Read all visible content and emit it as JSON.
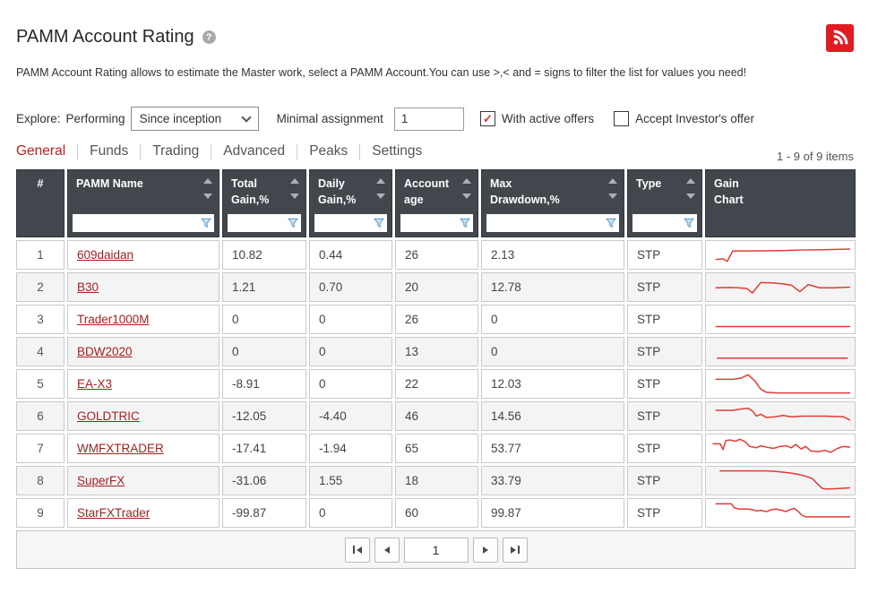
{
  "page": {
    "title": "PAMM Account Rating",
    "description": "PAMM Account Rating allows to estimate the Master work, select a PAMM Account.You can use >,< and = signs to filter the list for values you need!"
  },
  "controls": {
    "explore_label": "Explore:",
    "performing_label": "Performing",
    "period_select": {
      "value": "Since inception"
    },
    "minimal_assignment_label": "Minimal assignment",
    "minimal_assignment_value": "1",
    "checkboxes": [
      {
        "label": "With active offers",
        "checked": true
      },
      {
        "label": "Accept Investor's offer",
        "checked": false
      }
    ]
  },
  "tabs": [
    {
      "label": "General",
      "active": true
    },
    {
      "label": "Funds",
      "active": false
    },
    {
      "label": "Trading",
      "active": false
    },
    {
      "label": "Advanced",
      "active": false
    },
    {
      "label": "Peaks",
      "active": false
    },
    {
      "label": "Settings",
      "active": false
    }
  ],
  "items_count": "1 - 9 of 9 items",
  "table": {
    "columns": [
      {
        "label_lines": [
          "#"
        ],
        "sortable": false,
        "filterable": false,
        "center": true
      },
      {
        "label_lines": [
          "PAMM Name"
        ],
        "sortable": true,
        "filterable": true
      },
      {
        "label_lines": [
          "Total",
          "Gain,%"
        ],
        "sortable": true,
        "filterable": true
      },
      {
        "label_lines": [
          "Daily",
          "Gain,%"
        ],
        "sortable": true,
        "filterable": true
      },
      {
        "label_lines": [
          "Account",
          "age"
        ],
        "sortable": true,
        "filterable": true
      },
      {
        "label_lines": [
          "Max",
          "Drawdown,%"
        ],
        "sortable": true,
        "filterable": true
      },
      {
        "label_lines": [
          "Type"
        ],
        "sortable": true,
        "filterable": true
      },
      {
        "label_lines": [
          "Gain",
          "Chart"
        ],
        "sortable": false,
        "filterable": false
      }
    ],
    "rows": [
      {
        "num": "1",
        "name": "609daidan",
        "total_gain": "10.82",
        "daily_gain": "0.44",
        "age": "26",
        "max_drawdown": "2.13",
        "type": "STP",
        "spark": [
          [
            4,
            27
          ],
          [
            9,
            26
          ],
          [
            12,
            30
          ],
          [
            16,
            14
          ],
          [
            30,
            14
          ],
          [
            50,
            13.5
          ],
          [
            65,
            12.5
          ],
          [
            80,
            12
          ],
          [
            100,
            11
          ]
        ]
      },
      {
        "num": "2",
        "name": "B30",
        "total_gain": "1.21",
        "daily_gain": "0.70",
        "age": "20",
        "max_drawdown": "12.78",
        "type": "STP",
        "spark": [
          [
            4,
            21
          ],
          [
            14,
            20.5
          ],
          [
            20,
            21
          ],
          [
            26,
            22
          ],
          [
            30,
            29
          ],
          [
            36,
            13
          ],
          [
            44,
            13.5
          ],
          [
            52,
            15
          ],
          [
            58,
            17
          ],
          [
            64,
            27
          ],
          [
            70,
            16
          ],
          [
            78,
            21
          ],
          [
            88,
            21
          ],
          [
            100,
            20
          ]
        ]
      },
      {
        "num": "3",
        "name": "Trader1000M",
        "total_gain": "0",
        "daily_gain": "0",
        "age": "26",
        "max_drawdown": "0",
        "type": "STP",
        "spark": [
          [
            4,
            31
          ],
          [
            100,
            31
          ]
        ]
      },
      {
        "num": "4",
        "name": "BDW2020",
        "total_gain": "0",
        "daily_gain": "0",
        "age": "13",
        "max_drawdown": "0",
        "type": "STP",
        "spark": [
          [
            5,
            30
          ],
          [
            98,
            30
          ]
        ]
      },
      {
        "num": "5",
        "name": "EA-X3",
        "total_gain": "-8.91",
        "daily_gain": "0",
        "age": "22",
        "max_drawdown": "12.03",
        "type": "STP",
        "spark": [
          [
            4,
            13
          ],
          [
            16,
            13
          ],
          [
            22,
            11
          ],
          [
            27,
            6
          ],
          [
            32,
            16
          ],
          [
            36,
            28
          ],
          [
            40,
            33
          ],
          [
            48,
            34
          ],
          [
            100,
            34
          ]
        ]
      },
      {
        "num": "6",
        "name": "GOLDTRIC",
        "total_gain": "-12.05",
        "daily_gain": "-4.40",
        "age": "46",
        "max_drawdown": "14.56",
        "type": "STP",
        "spark": [
          [
            4,
            11
          ],
          [
            16,
            11
          ],
          [
            22,
            9
          ],
          [
            27,
            8
          ],
          [
            30,
            12
          ],
          [
            33,
            20
          ],
          [
            36,
            17
          ],
          [
            40,
            22
          ],
          [
            46,
            21
          ],
          [
            52,
            19
          ],
          [
            58,
            21
          ],
          [
            66,
            20
          ],
          [
            74,
            20
          ],
          [
            82,
            20
          ],
          [
            90,
            20.5
          ],
          [
            95,
            21
          ],
          [
            100,
            26
          ]
        ]
      },
      {
        "num": "7",
        "name": "WMFXTRADER",
        "total_gain": "-17.41",
        "daily_gain": "-1.94",
        "age": "65",
        "max_drawdown": "53.77",
        "type": "STP",
        "spark": [
          [
            2,
            13
          ],
          [
            7,
            13
          ],
          [
            9,
            22
          ],
          [
            11,
            8
          ],
          [
            14,
            7
          ],
          [
            18,
            9
          ],
          [
            21,
            6
          ],
          [
            25,
            10
          ],
          [
            28,
            17
          ],
          [
            33,
            19
          ],
          [
            36,
            16
          ],
          [
            40,
            18
          ],
          [
            45,
            20
          ],
          [
            50,
            17
          ],
          [
            54,
            16
          ],
          [
            58,
            19
          ],
          [
            61,
            14
          ],
          [
            65,
            21
          ],
          [
            68,
            17
          ],
          [
            72,
            24
          ],
          [
            77,
            25
          ],
          [
            82,
            23
          ],
          [
            86,
            26
          ],
          [
            91,
            20
          ],
          [
            95,
            17
          ],
          [
            100,
            18
          ]
        ]
      },
      {
        "num": "8",
        "name": "SuperFX",
        "total_gain": "-31.06",
        "daily_gain": "1.55",
        "age": "18",
        "max_drawdown": "33.79",
        "type": "STP",
        "spark": [
          [
            7,
            5
          ],
          [
            40,
            5
          ],
          [
            48,
            6
          ],
          [
            56,
            8
          ],
          [
            62,
            10
          ],
          [
            68,
            13
          ],
          [
            73,
            17
          ],
          [
            77,
            26
          ],
          [
            80,
            32
          ],
          [
            84,
            33
          ],
          [
            92,
            32
          ],
          [
            100,
            31
          ]
        ]
      },
      {
        "num": "9",
        "name": "StarFXTrader",
        "total_gain": "-99.87",
        "daily_gain": "0",
        "age": "60",
        "max_drawdown": "99.87",
        "type": "STP",
        "spark": [
          [
            4,
            6
          ],
          [
            15,
            6
          ],
          [
            17,
            12
          ],
          [
            20,
            14
          ],
          [
            26,
            14
          ],
          [
            30,
            15
          ],
          [
            33,
            17
          ],
          [
            36,
            16
          ],
          [
            40,
            18
          ],
          [
            44,
            15
          ],
          [
            47,
            14
          ],
          [
            51,
            16
          ],
          [
            54,
            18
          ],
          [
            57,
            15
          ],
          [
            60,
            13
          ],
          [
            63,
            18
          ],
          [
            65,
            23
          ],
          [
            68,
            26
          ],
          [
            100,
            26
          ]
        ]
      }
    ]
  },
  "pager": {
    "page": "1"
  },
  "colors": {
    "accent_red": "#c21f1b",
    "link_red": "#a5201f",
    "spark_red": "#e23b35",
    "header_bg": "#41474c",
    "rss_red": "#e01b22",
    "filter_blue": "#5e9bc8",
    "check_red": "#e03131"
  }
}
